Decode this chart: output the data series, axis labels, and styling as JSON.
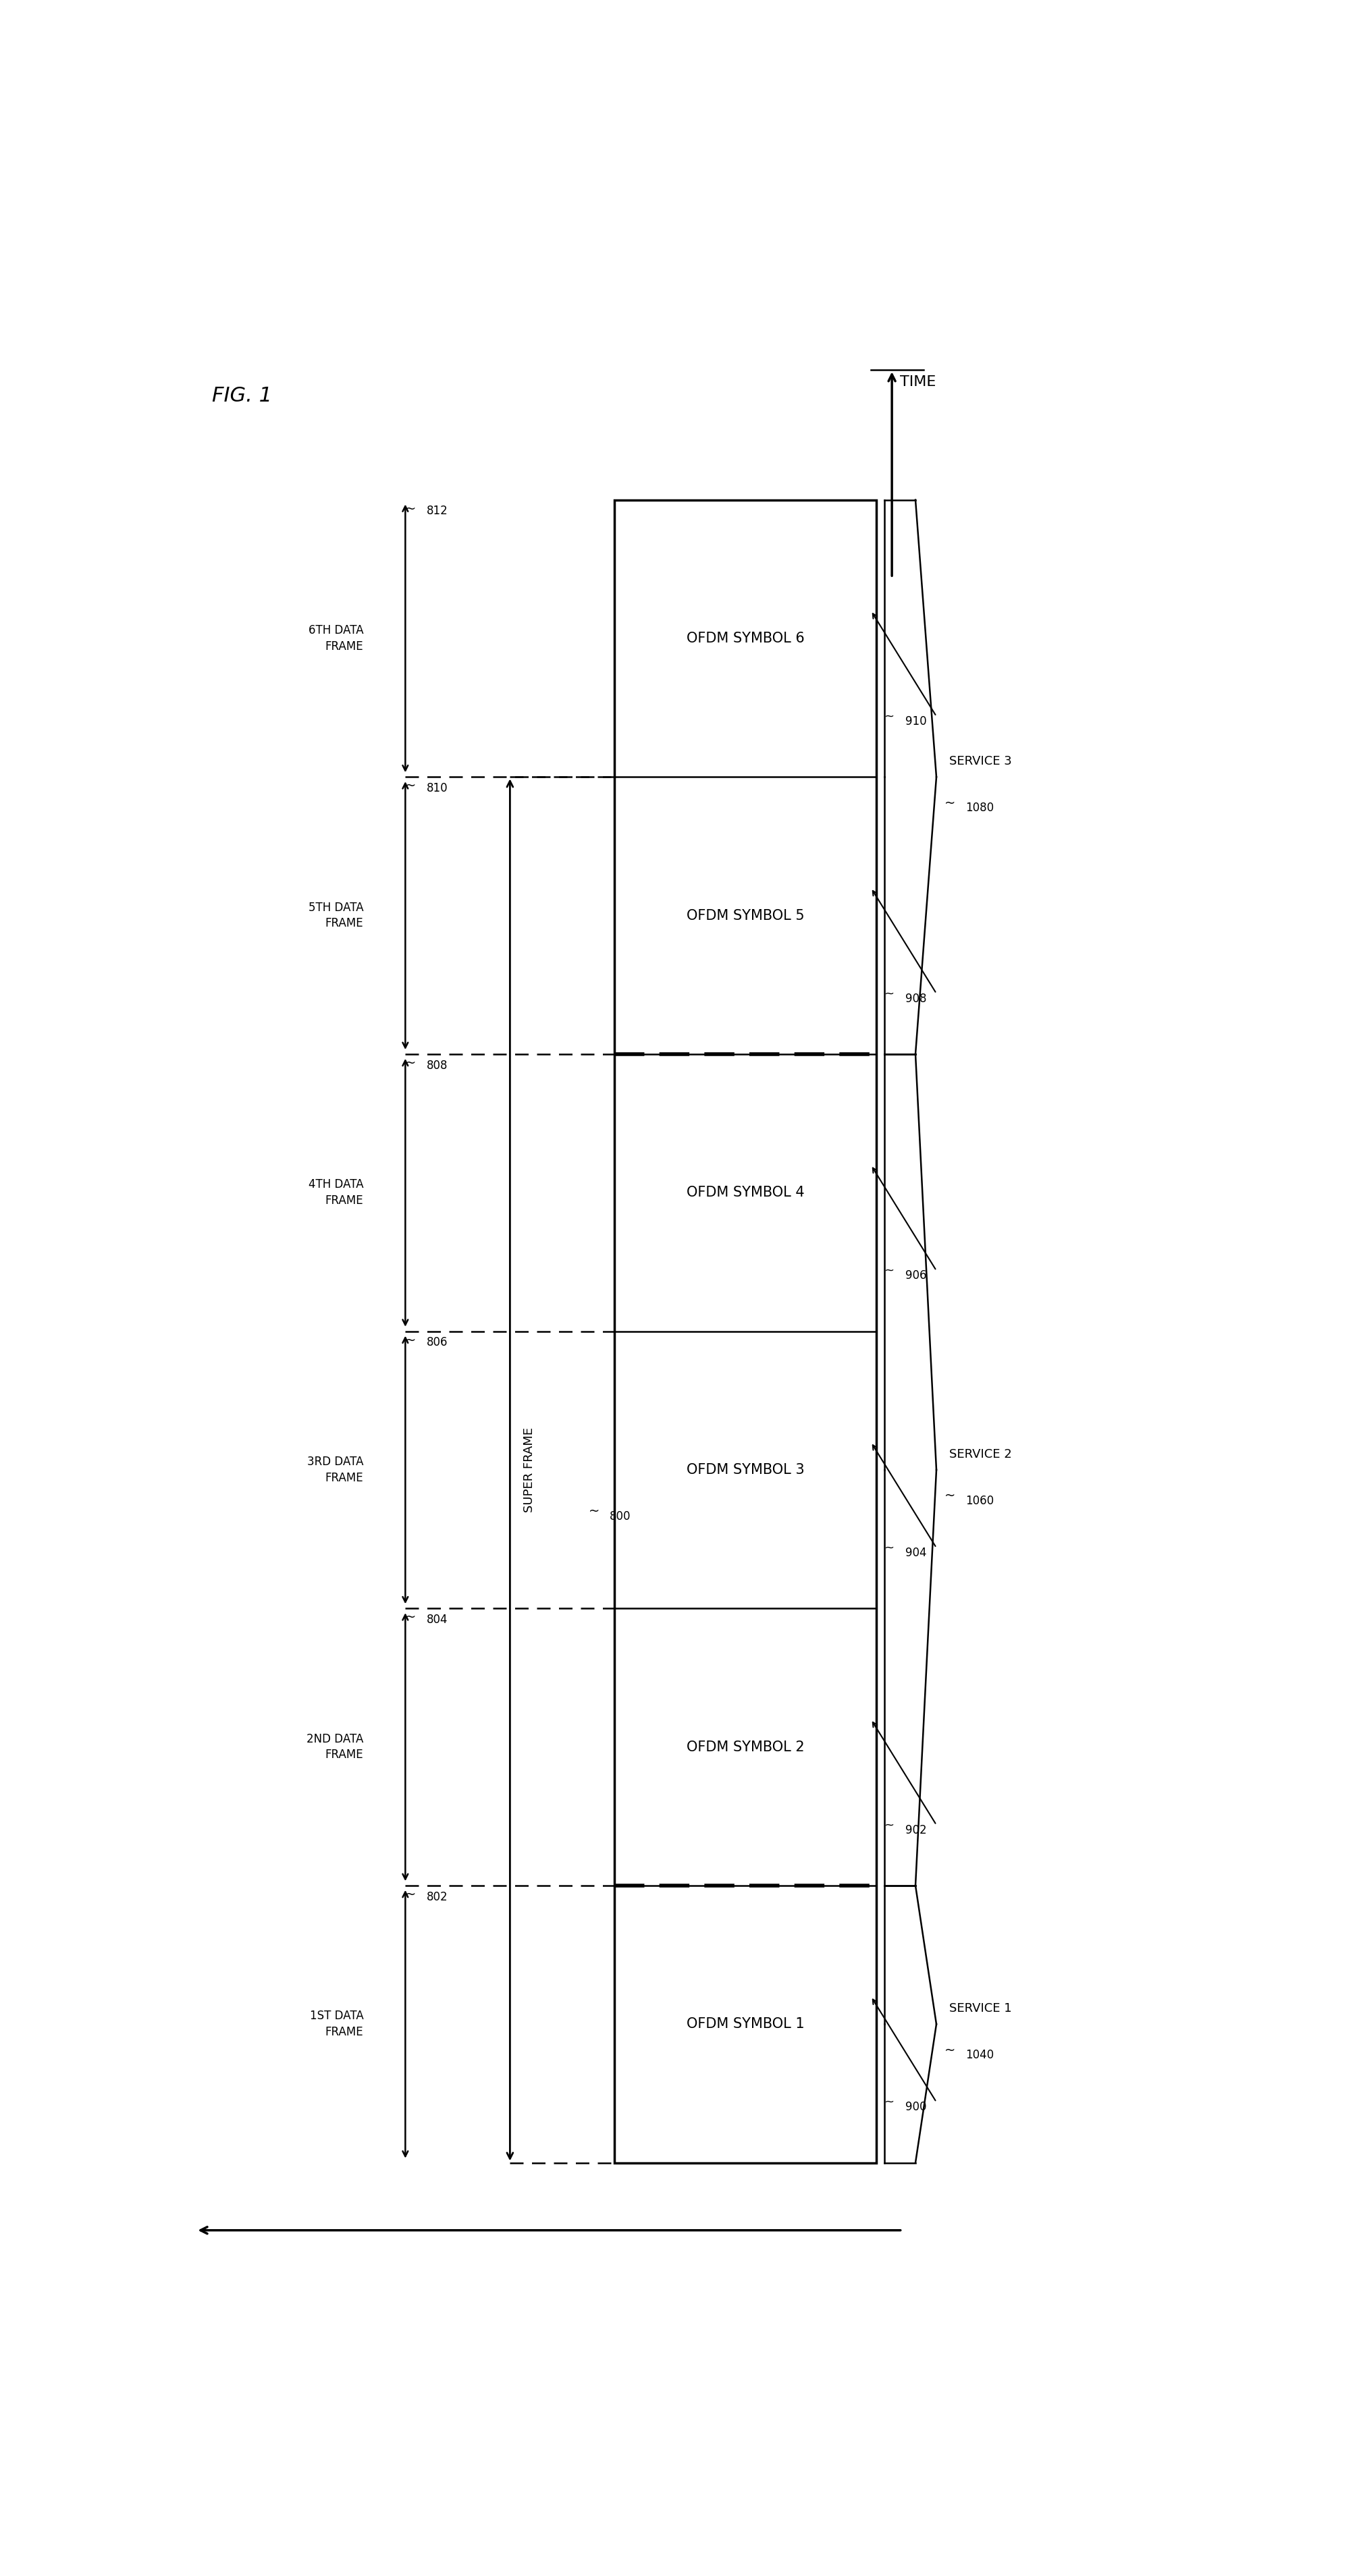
{
  "fig_title": "FIG. 1",
  "bg_color": "#ffffff",
  "symbols": [
    "OFDM SYMBOL 1",
    "OFDM SYMBOL 2",
    "OFDM SYMBOL 3",
    "OFDM SYMBOL 4",
    "OFDM SYMBOL 5",
    "OFDM SYMBOL 6"
  ],
  "symbol_refs": [
    "900",
    "902",
    "904",
    "906",
    "908",
    "910"
  ],
  "services": [
    {
      "label": "SERVICE 1",
      "ref": "1040",
      "start": 0,
      "end": 0
    },
    {
      "label": "SERVICE 2",
      "ref": "1060",
      "start": 1,
      "end": 3
    },
    {
      "label": "SERVICE 3",
      "ref": "1080",
      "start": 4,
      "end": 5
    }
  ],
  "frame_labels": [
    "1ST DATA\nFRAME",
    "2ND DATA\nFRAME",
    "3RD DATA\nFRAME",
    "4TH DATA\nFRAME",
    "5TH DATA\nFRAME",
    "6TH DATA\nFRAME"
  ],
  "frame_refs": [
    "802",
    "804",
    "806",
    "808",
    "810",
    "812"
  ],
  "super_frame_label": "SUPER FRAME",
  "super_frame_ref": "800",
  "time_label": "TIME",
  "service_boundaries": [
    1,
    4
  ],
  "n_symbols": 6
}
